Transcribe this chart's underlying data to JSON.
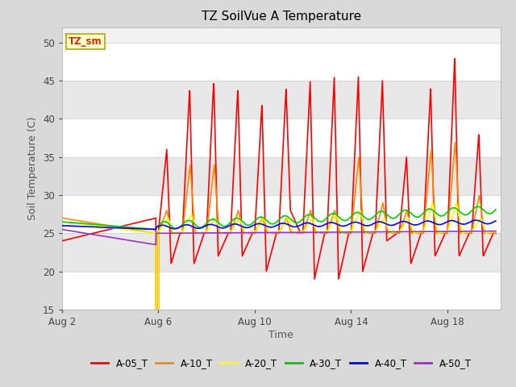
{
  "title": "TZ SoilVue A Temperature",
  "xlabel": "Time",
  "ylabel": "Soil Temperature (C)",
  "ylim": [
    15,
    52
  ],
  "yticks": [
    15,
    20,
    25,
    30,
    35,
    40,
    45,
    50
  ],
  "legend_label": "TZ_sm",
  "series_labels": [
    "A-05_T",
    "A-10_T",
    "A-20_T",
    "A-30_T",
    "A-40_T",
    "A-50_T"
  ],
  "series_colors": [
    "#ff0000",
    "#ff8800",
    "#ffff00",
    "#00cc00",
    "#0000ff",
    "#9933cc"
  ],
  "bg_color": "#e8e8e8",
  "plot_bg_color": "#f0f0f0",
  "grid_color": "#ffffff",
  "xtick_labels": [
    "Aug 2",
    "Aug 6",
    "Aug 10",
    "Aug 14",
    "Aug 18"
  ],
  "xtick_positions": [
    2,
    6,
    10,
    14,
    18
  ],
  "xlim": [
    2,
    20.2
  ],
  "figsize": [
    6.4,
    4.8
  ],
  "dpi": 100
}
